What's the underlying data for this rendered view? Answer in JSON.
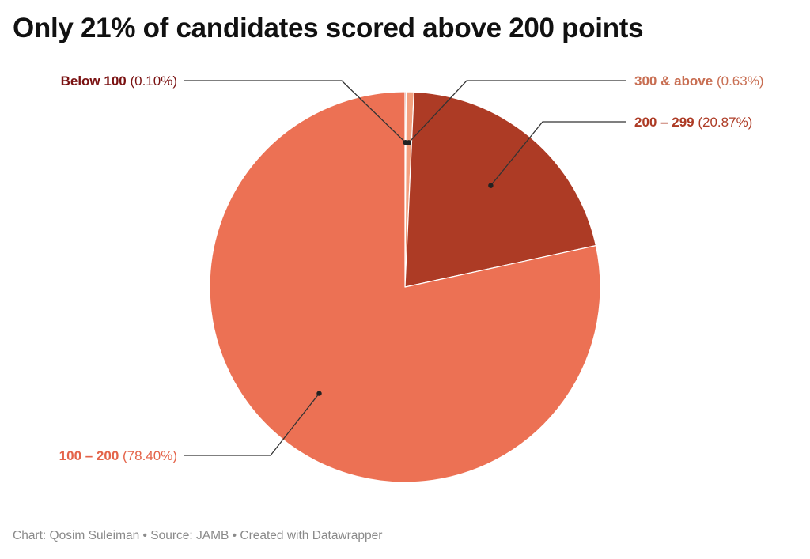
{
  "title": "Only 21% of candidates scored above 200 points",
  "footer": {
    "chart": "Chart: Qosim Suleiman",
    "sep1": " • ",
    "source": "Source: JAMB",
    "sep2": " • ",
    "created": "Created with Datawrapper"
  },
  "chart_data": {
    "type": "pie",
    "title": "Only 21% of candidates scored above 200 points",
    "slices": [
      {
        "label": "Below 100",
        "value": 0.1,
        "value_text": "(0.10%)",
        "color": "#8b1a1a"
      },
      {
        "label": "300 & above",
        "value": 0.63,
        "value_text": "(0.63%)",
        "color": "#f3a07f"
      },
      {
        "label": "200 – 299",
        "value": 20.87,
        "value_text": "(20.87%)",
        "color": "#ad3b25"
      },
      {
        "label": "100 – 200",
        "value": 78.4,
        "value_text": "(78.40%)",
        "color": "#ec7154"
      }
    ],
    "label_colors": {
      "Below 100": "#7a1212",
      "300 & above": "#c86e52",
      "200 – 299": "#ad3b25",
      "100 – 200": "#e4644a"
    },
    "start": "12 o'clock",
    "direction": "clockwise"
  }
}
